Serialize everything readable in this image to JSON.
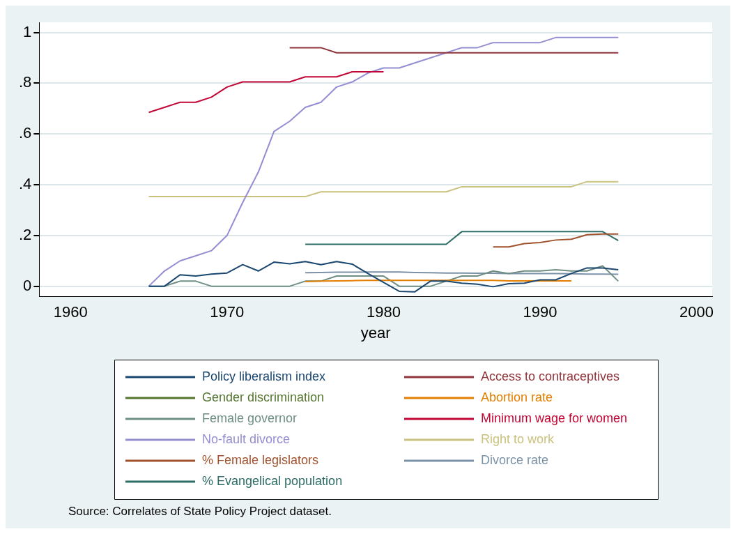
{
  "chart_data": {
    "type": "line",
    "xlabel": "year",
    "x": [
      1965,
      1966,
      1967,
      1968,
      1969,
      1970,
      1971,
      1972,
      1973,
      1974,
      1975,
      1976,
      1977,
      1978,
      1979,
      1980,
      1981,
      1982,
      1983,
      1984,
      1985,
      1986,
      1987,
      1988,
      1989,
      1990,
      1991,
      1992,
      1993,
      1994,
      1995
    ],
    "xlim": [
      1958,
      2001
    ],
    "xticks": [
      1960,
      1970,
      1980,
      1990,
      2000
    ],
    "ylim": [
      -0.04,
      1.04
    ],
    "yticks": [
      {
        "value": 0,
        "label": "0"
      },
      {
        "value": 0.2,
        "label": ".2"
      },
      {
        "value": 0.4,
        "label": ".4"
      },
      {
        "value": 0.6,
        "label": ".6"
      },
      {
        "value": 0.8,
        "label": ".8"
      },
      {
        "value": 1,
        "label": "1"
      }
    ],
    "grid": "y",
    "legend": "bottom",
    "marker": "none",
    "line_style": "solid",
    "series": [
      {
        "name": "Policy liberalism index",
        "color": "#1a476f",
        "values": [
          0,
          0,
          0.045,
          0.04,
          0.048,
          0.052,
          0.085,
          0.06,
          0.095,
          0.088,
          0.097,
          0.085,
          0.097,
          0.087,
          0.05,
          0.015,
          -0.02,
          -0.022,
          0.02,
          0.02,
          0.012,
          0.008,
          -0.002,
          0.01,
          0.012,
          0.025,
          0.025,
          0.05,
          0.072,
          0.072,
          0.065
        ]
      },
      {
        "name": "Access to contraceptives",
        "color": "#90353b",
        "values": [
          null,
          null,
          null,
          null,
          null,
          null,
          null,
          null,
          null,
          0.94,
          0.94,
          0.94,
          0.92,
          0.92,
          0.92,
          0.92,
          0.92,
          0.92,
          0.92,
          0.92,
          0.92,
          0.92,
          0.92,
          0.92,
          0.92,
          0.92,
          0.92,
          0.92,
          0.92,
          0.92,
          0.92
        ]
      },
      {
        "name": "Gender discrimination",
        "color": "#55752f",
        "values": [
          null,
          null,
          null,
          null,
          null,
          null,
          null,
          null,
          null,
          null,
          null,
          null,
          null,
          null,
          null,
          null,
          null,
          null,
          null,
          null,
          null,
          null,
          null,
          null,
          null,
          null,
          null,
          null,
          null,
          null,
          null
        ]
      },
      {
        "name": "Abortion rate",
        "color": "#e37e00",
        "values": [
          null,
          null,
          null,
          null,
          null,
          null,
          null,
          null,
          null,
          null,
          0.018,
          0.02,
          0.021,
          0.022,
          0.023,
          0.023,
          0.023,
          0.023,
          0.023,
          0.023,
          0.023,
          0.023,
          0.023,
          0.021,
          0.021,
          0.021,
          0.021,
          0.021,
          null,
          null,
          null
        ]
      },
      {
        "name": "Female governor",
        "color": "#6e8e84",
        "values": [
          0,
          0,
          0.02,
          0.02,
          0,
          0,
          0,
          0,
          0,
          0,
          0.02,
          0.02,
          0.04,
          0.04,
          0.04,
          0.04,
          0,
          0,
          0,
          0.02,
          0.04,
          0.04,
          0.06,
          0.05,
          0.06,
          0.06,
          0.065,
          0.06,
          0.06,
          0.08,
          0.02
        ]
      },
      {
        "name": "Minimum wage for women",
        "color": "#c10534",
        "values": [
          0.685,
          0.705,
          0.725,
          0.725,
          0.745,
          0.785,
          0.805,
          0.805,
          0.805,
          0.805,
          0.825,
          0.825,
          0.825,
          0.845,
          0.845,
          0.845,
          null,
          null,
          null,
          null,
          null,
          null,
          null,
          null,
          null,
          null,
          null,
          null,
          null,
          null,
          null
        ]
      },
      {
        "name": "No-fault divorce",
        "color": "#938dd2",
        "values": [
          0,
          0.06,
          0.1,
          0.12,
          0.14,
          0.2,
          0.33,
          0.45,
          0.61,
          0.65,
          0.705,
          0.725,
          0.785,
          0.805,
          0.84,
          0.86,
          0.86,
          0.88,
          0.9,
          0.92,
          0.94,
          0.94,
          0.96,
          0.96,
          0.96,
          0.96,
          0.98,
          0.98,
          0.98,
          0.98,
          0.98
        ]
      },
      {
        "name": "Right to work",
        "color": "#cac27e",
        "values": [
          0.353,
          0.353,
          0.353,
          0.353,
          0.353,
          0.353,
          0.353,
          0.353,
          0.353,
          0.353,
          0.353,
          0.372,
          0.372,
          0.372,
          0.372,
          0.372,
          0.372,
          0.372,
          0.372,
          0.372,
          0.392,
          0.392,
          0.392,
          0.392,
          0.392,
          0.392,
          0.392,
          0.392,
          0.412,
          0.412,
          0.412
        ]
      },
      {
        "name": "% Female legislators",
        "color": "#a0522d",
        "values": [
          null,
          null,
          null,
          null,
          null,
          null,
          null,
          null,
          null,
          null,
          null,
          null,
          null,
          null,
          null,
          null,
          null,
          null,
          null,
          null,
          null,
          null,
          0.155,
          0.155,
          0.168,
          0.172,
          0.182,
          0.185,
          0.203,
          0.206,
          0.206
        ]
      },
      {
        "name": "Divorce rate",
        "color": "#7b92a8",
        "values": [
          null,
          null,
          null,
          null,
          null,
          null,
          null,
          null,
          null,
          null,
          0.053,
          0.054,
          0.055,
          0.055,
          0.056,
          0.056,
          0.056,
          0.054,
          0.053,
          0.052,
          0.052,
          0.051,
          0.051,
          0.05,
          0.05,
          0.05,
          0.05,
          0.049,
          0.048,
          0.048,
          0.047
        ]
      },
      {
        "name": "% Evangelical population",
        "color": "#2d6d66",
        "values": [
          null,
          null,
          null,
          null,
          null,
          null,
          null,
          null,
          null,
          null,
          0.165,
          0.165,
          0.165,
          0.165,
          0.165,
          0.165,
          0.165,
          0.165,
          0.165,
          0.165,
          0.215,
          0.215,
          0.215,
          0.215,
          0.215,
          0.215,
          0.215,
          0.215,
          0.215,
          0.215,
          0.18
        ]
      }
    ],
    "annotations": [
      "Source: Correlates of State Policy Project dataset."
    ]
  }
}
